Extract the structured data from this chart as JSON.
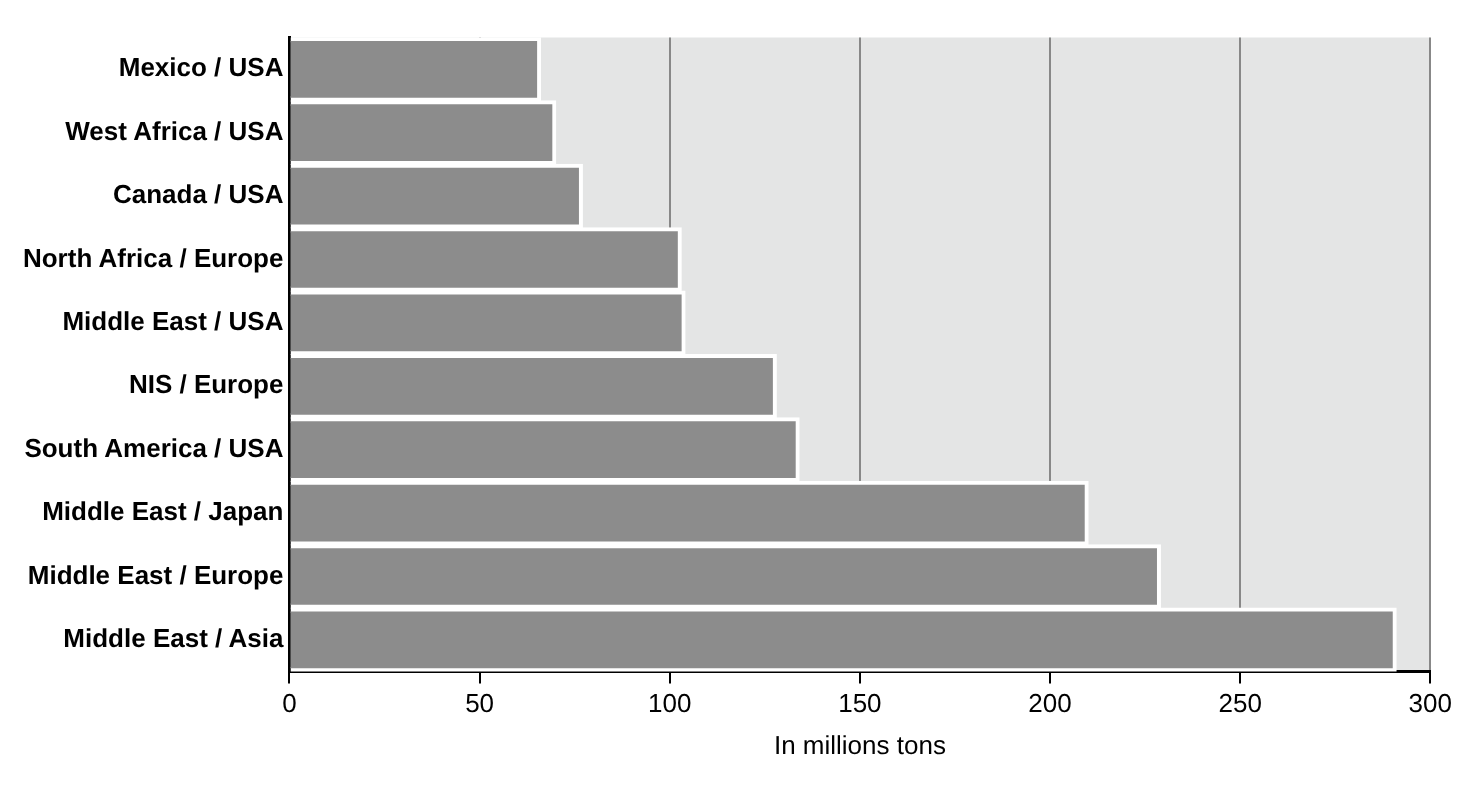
{
  "chart_data": {
    "type": "bar",
    "orientation": "horizontal",
    "xlabel": "In millions tons",
    "categories": [
      "Mexico / USA",
      "West Africa / USA",
      "Canada / USA",
      "North Africa / Europe",
      "Middle East / USA",
      "NIS / Europe",
      "South America / USA",
      "Middle East / Japan",
      "Middle East / Europe",
      "Middle East / Asia"
    ],
    "values": [
      66,
      70,
      77,
      103,
      104,
      128,
      134,
      210,
      229,
      291
    ],
    "color": "#8c8c8c",
    "xlim": [
      0,
      300
    ],
    "xticks": [
      0,
      50,
      100,
      150,
      200,
      250,
      300
    ],
    "grid": "x",
    "legend": false
  }
}
